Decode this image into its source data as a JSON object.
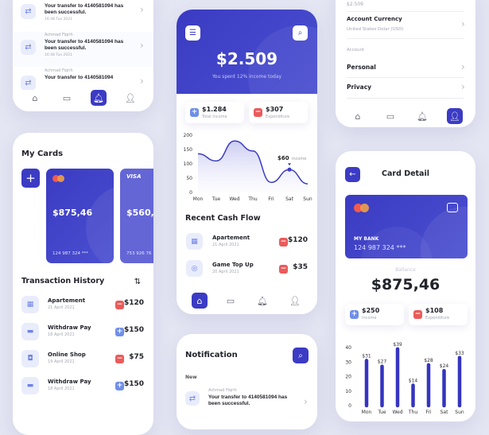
{
  "colors": {
    "primary": "#3b3bc4",
    "income": "#6f8fe8",
    "expense": "#ec5a5a",
    "background": "#e4e6f3"
  },
  "notif_list": {
    "items": [
      {
        "sender": "",
        "message": "Your transfer to 4140581094 has been successful.",
        "time": "16:48 Tue 2021"
      },
      {
        "sender": "Achmad Fiqrih",
        "message": "Your transfer to 4140581094 has been successful.",
        "time": "16:48 Tue 2021"
      },
      {
        "sender": "Achmad Fiqrih",
        "message": "Your transfer to 4140581094",
        "time": ""
      }
    ],
    "active_nav": "notifications"
  },
  "cards": {
    "title": "My Cards",
    "add_label": "+",
    "items": [
      {
        "brand": "mastercard",
        "balance": "$875,46",
        "number": "124 987 324 ***"
      },
      {
        "brand": "VISA",
        "balance": "$560,0",
        "number": "753 926 76"
      }
    ]
  },
  "history": {
    "title": "Transaction History",
    "filter_icon": "sliders-icon",
    "items": [
      {
        "name": "Apartement",
        "date": "21 April 2021",
        "type": "expense",
        "amount": "$120",
        "icon": "building-icon"
      },
      {
        "name": "Withdraw Pay",
        "date": "18 April 2021",
        "type": "income",
        "amount": "$150",
        "icon": "card-icon"
      },
      {
        "name": "Online Shop",
        "date": "19 April 2021",
        "type": "expense",
        "amount": "$75",
        "icon": "bag-icon"
      },
      {
        "name": "Withdraw Pay",
        "date": "18 April 2021",
        "type": "income",
        "amount": "$150",
        "icon": "card-icon"
      }
    ]
  },
  "home": {
    "balance": "$2.509",
    "subtitle": "You spent 12% income today",
    "income": {
      "value": "$1.284",
      "label": "Total Income"
    },
    "expense": {
      "value": "$307",
      "label": "Expenditure"
    },
    "annotation": {
      "value": "$60",
      "label": "income"
    },
    "recent_title": "Recent Cash Flow",
    "recent": [
      {
        "name": "Apartement",
        "date": "21 April 2021",
        "type": "expense",
        "amount": "$120",
        "icon": "building-icon"
      },
      {
        "name": "Game Top Up",
        "date": "20 April 2021",
        "type": "expense",
        "amount": "$35",
        "icon": "gamepad-icon"
      }
    ],
    "active_nav": "home"
  },
  "notification": {
    "title": "Notification",
    "section": "New",
    "item": {
      "sender": "Achmad Fiqrih",
      "message": "Your transfer to 4140581094 has been successful."
    }
  },
  "settings": {
    "top_value": "$2.509",
    "currency_label": "Account Currency",
    "currency_value": "United States Dolar (USD)",
    "section": "Account",
    "personal": "Personal",
    "privacy": "Privacy",
    "active_nav": "profile"
  },
  "card_detail": {
    "title": "Card Detail",
    "bank": "MY BANK",
    "number": "124 987 324 ***",
    "balance_label": "Ballance",
    "balance": "$875,46",
    "income": {
      "value": "$250",
      "label": "Income"
    },
    "expense": {
      "value": "$108",
      "label": "Expenditure"
    }
  },
  "chart_data": [
    {
      "type": "area",
      "categories": [
        "Mon",
        "Tue",
        "Wed",
        "Thu",
        "Fri",
        "Sat",
        "Sun"
      ],
      "values": [
        135,
        110,
        180,
        145,
        35,
        80,
        30
      ],
      "yticks": [
        "200",
        "150",
        "100",
        "50",
        "0"
      ],
      "ylim": [
        0,
        200
      ],
      "grid": false
    },
    {
      "type": "bar",
      "categories": [
        "Mon",
        "Tue",
        "Wed",
        "Thu",
        "Fri",
        "Sat",
        "Sun"
      ],
      "values": [
        31,
        27,
        39,
        14,
        28,
        24,
        33
      ],
      "labels": [
        "$31",
        "$27",
        "$39",
        "$14",
        "$28",
        "$24",
        "$33"
      ],
      "yticks": [
        "40",
        "30",
        "20",
        "10",
        "0"
      ],
      "ylim": [
        0,
        40
      ],
      "grid": false
    }
  ]
}
